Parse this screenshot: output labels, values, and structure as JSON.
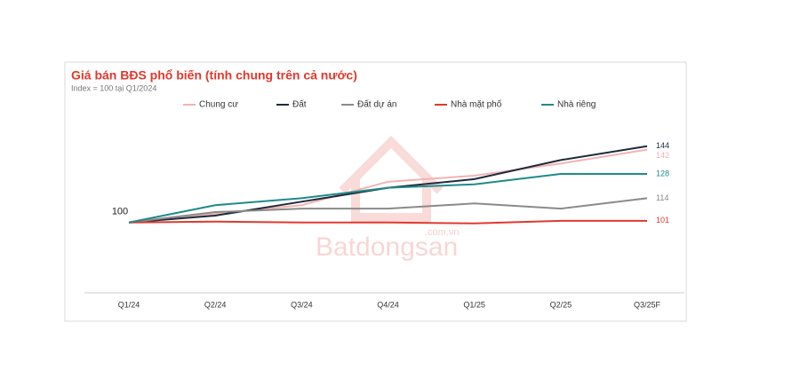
{
  "chart_data": {
    "type": "line",
    "title": "Giá bán BĐS phổ biến (tính chung trên cả nước)",
    "subtitle": "Index = 100 tại Q1/2024",
    "watermark": "Batdongsan",
    "watermark_domain": ".com.vn",
    "categories": [
      "Q1/24",
      "Q2/24",
      "Q3/24",
      "Q4/24",
      "Q1/25",
      "Q2/25",
      "Q3/25F"
    ],
    "ylim": [
      60,
      150
    ],
    "legend": "top",
    "series": [
      {
        "name": "Chung cư",
        "color": "#f2b3b3",
        "values": [
          100,
          105,
          110,
          123.5,
          127,
          134,
          142
        ]
      },
      {
        "name": "Đất",
        "color": "#1f2a3a",
        "values": [
          100,
          104,
          112,
          120,
          125,
          136,
          144
        ]
      },
      {
        "name": "Đất dự án",
        "color": "#8a8a8a",
        "values": [
          100,
          106,
          108,
          108,
          111,
          108,
          114
        ]
      },
      {
        "name": "Nhà mặt phố",
        "color": "#e0392d",
        "values": [
          100,
          100.5,
          100,
          100,
          99.5,
          101,
          101
        ]
      },
      {
        "name": "Nhà riêng",
        "color": "#1f8a8a",
        "values": [
          100,
          110,
          114,
          120,
          122,
          128,
          128
        ]
      }
    ]
  }
}
